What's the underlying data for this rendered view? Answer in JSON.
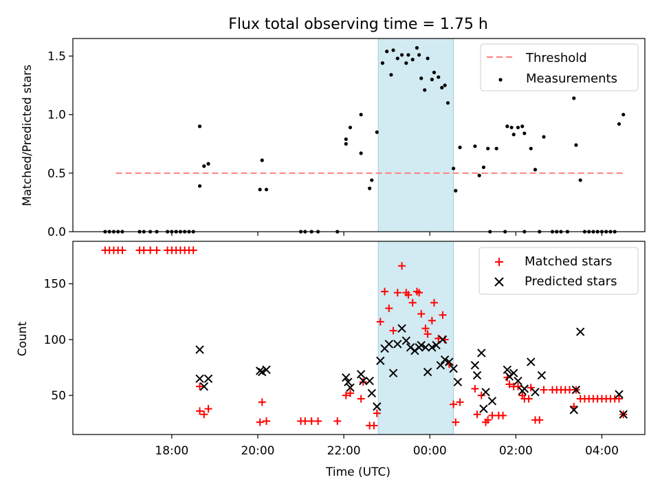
{
  "figure": {
    "title": "Flux total observing time = 1.75 h"
  },
  "chart_data": [
    {
      "type": "scatter",
      "ylabel": "Matched/Predicted stars",
      "xlabel": "",
      "x_unit": "hours since 00:00 UTC (negative = previous day)",
      "xlim": [
        -8.3,
        5.0
      ],
      "ylim": [
        0.0,
        1.65
      ],
      "yticks": [
        "0.0",
        "0.5",
        "1.0",
        "1.5"
      ],
      "shaded_interval": {
        "start": -1.2,
        "end": 0.55,
        "color": "#add8e6"
      },
      "threshold": {
        "name": "Threshold",
        "value": 0.5,
        "x_start": -7.3,
        "x_end": 4.5,
        "color": "#ff7f7f"
      },
      "legend": {
        "position": "top-right",
        "entries": [
          "Threshold",
          "Measurements"
        ]
      },
      "series": [
        {
          "name": "Measurements",
          "color": "#000000",
          "points": [
            [
              -7.55,
              0
            ],
            [
              -7.45,
              0
            ],
            [
              -7.35,
              0
            ],
            [
              -7.25,
              0
            ],
            [
              -7.15,
              0
            ],
            [
              -6.75,
              0
            ],
            [
              -6.65,
              0
            ],
            [
              -6.5,
              0
            ],
            [
              -6.35,
              0
            ],
            [
              -6.1,
              0
            ],
            [
              -6.0,
              0
            ],
            [
              -5.9,
              0
            ],
            [
              -5.8,
              0
            ],
            [
              -5.7,
              0
            ],
            [
              -5.6,
              0
            ],
            [
              -5.5,
              0
            ],
            [
              -5.35,
              0.9
            ],
            [
              -5.35,
              0.39
            ],
            [
              -5.25,
              0.56
            ],
            [
              -5.15,
              0.58
            ],
            [
              -3.95,
              0.36
            ],
            [
              -3.9,
              0.61
            ],
            [
              -3.8,
              0.36
            ],
            [
              -3.0,
              0
            ],
            [
              -2.9,
              0
            ],
            [
              -2.75,
              0
            ],
            [
              -2.6,
              0
            ],
            [
              -2.15,
              0
            ],
            [
              -1.95,
              0.79
            ],
            [
              -1.95,
              0.75
            ],
            [
              -1.85,
              0.89
            ],
            [
              -1.6,
              1.0
            ],
            [
              -1.6,
              0.67
            ],
            [
              -1.4,
              0.37
            ],
            [
              -1.35,
              0.44
            ],
            [
              -1.23,
              0.85
            ],
            [
              -1.1,
              1.44
            ],
            [
              -1.0,
              1.54
            ],
            [
              -0.9,
              1.34
            ],
            [
              -0.85,
              1.55
            ],
            [
              -0.75,
              1.48
            ],
            [
              -0.65,
              1.51
            ],
            [
              -0.55,
              1.44
            ],
            [
              -0.5,
              1.51
            ],
            [
              -0.4,
              1.47
            ],
            [
              -0.3,
              1.57
            ],
            [
              -0.25,
              1.51
            ],
            [
              -0.2,
              1.31
            ],
            [
              -0.12,
              1.21
            ],
            [
              -0.05,
              1.48
            ],
            [
              0.05,
              1.3
            ],
            [
              0.1,
              1.36
            ],
            [
              0.2,
              1.32
            ],
            [
              0.28,
              1.23
            ],
            [
              0.35,
              1.25
            ],
            [
              0.42,
              1.1
            ],
            [
              0.55,
              0.54
            ],
            [
              0.6,
              0.35
            ],
            [
              0.7,
              0.72
            ],
            [
              1.05,
              0.73
            ],
            [
              1.15,
              0.48
            ],
            [
              1.25,
              0.55
            ],
            [
              1.35,
              0.71
            ],
            [
              1.4,
              0
            ],
            [
              1.55,
              0.71
            ],
            [
              1.75,
              0
            ],
            [
              1.8,
              0.9
            ],
            [
              1.9,
              0.89
            ],
            [
              1.95,
              0.83
            ],
            [
              2.05,
              0.89
            ],
            [
              2.15,
              0.9
            ],
            [
              2.2,
              0.84
            ],
            [
              2.2,
              0
            ],
            [
              2.35,
              0.71
            ],
            [
              2.45,
              0.53
            ],
            [
              2.55,
              0
            ],
            [
              2.65,
              0.81
            ],
            [
              2.85,
              0
            ],
            [
              2.95,
              0
            ],
            [
              3.05,
              0
            ],
            [
              3.2,
              0
            ],
            [
              3.35,
              1.14
            ],
            [
              3.4,
              0.74
            ],
            [
              3.5,
              0.44
            ],
            [
              3.6,
              0
            ],
            [
              3.7,
              0
            ],
            [
              3.8,
              0
            ],
            [
              3.9,
              0
            ],
            [
              4.0,
              0
            ],
            [
              4.1,
              0
            ],
            [
              4.2,
              0
            ],
            [
              4.3,
              0
            ],
            [
              4.4,
              0.92
            ],
            [
              4.5,
              1.0
            ]
          ]
        }
      ]
    },
    {
      "type": "scatter",
      "xlabel": "Time (UTC)",
      "ylabel": "Count",
      "x_unit": "hours since 00:00 UTC (negative = previous day)",
      "xlim": [
        -8.3,
        5.0
      ],
      "ylim": [
        15,
        188
      ],
      "yticks": [
        "50",
        "100",
        "150"
      ],
      "xticks": [
        "18:00",
        "20:00",
        "22:00",
        "00:00",
        "02:00",
        "04:00"
      ],
      "shaded_interval": {
        "start": -1.2,
        "end": 0.55,
        "color": "#add8e6"
      },
      "legend": {
        "position": "top-right",
        "entries": [
          "Matched stars",
          "Predicted stars"
        ]
      },
      "series": [
        {
          "name": "Matched stars",
          "marker": "plus",
          "color": "#ff0000",
          "points": [
            [
              -7.55,
              180
            ],
            [
              -7.45,
              180
            ],
            [
              -7.35,
              180
            ],
            [
              -7.25,
              180
            ],
            [
              -7.15,
              180
            ],
            [
              -6.75,
              180
            ],
            [
              -6.65,
              180
            ],
            [
              -6.5,
              180
            ],
            [
              -6.35,
              180
            ],
            [
              -6.1,
              180
            ],
            [
              -6.0,
              180
            ],
            [
              -5.9,
              180
            ],
            [
              -5.8,
              180
            ],
            [
              -5.7,
              180
            ],
            [
              -5.6,
              180
            ],
            [
              -5.5,
              180
            ],
            [
              -5.35,
              58
            ],
            [
              -5.35,
              36
            ],
            [
              -5.25,
              33
            ],
            [
              -5.15,
              38
            ],
            [
              -3.95,
              26
            ],
            [
              -3.9,
              44
            ],
            [
              -3.8,
              27
            ],
            [
              -3.0,
              27
            ],
            [
              -2.9,
              27
            ],
            [
              -2.75,
              27
            ],
            [
              -2.6,
              27
            ],
            [
              -2.15,
              27
            ],
            [
              -1.95,
              50
            ],
            [
              -1.85,
              52
            ],
            [
              -1.6,
              47
            ],
            [
              -1.55,
              62
            ],
            [
              -1.4,
              23
            ],
            [
              -1.3,
              23
            ],
            [
              -1.23,
              34
            ],
            [
              -1.15,
              116
            ],
            [
              -1.05,
              143
            ],
            [
              -0.95,
              128
            ],
            [
              -0.85,
              108
            ],
            [
              -0.75,
              142
            ],
            [
              -0.65,
              166
            ],
            [
              -0.55,
              142
            ],
            [
              -0.5,
              140
            ],
            [
              -0.4,
              133
            ],
            [
              -0.3,
              143
            ],
            [
              -0.25,
              142
            ],
            [
              -0.2,
              123
            ],
            [
              -0.1,
              110
            ],
            [
              -0.05,
              105
            ],
            [
              0.05,
              117
            ],
            [
              0.1,
              133
            ],
            [
              0.2,
              101
            ],
            [
              0.3,
              122
            ],
            [
              0.35,
              100
            ],
            [
              0.45,
              78
            ],
            [
              0.55,
              42
            ],
            [
              0.6,
              26
            ],
            [
              0.7,
              44
            ],
            [
              1.05,
              56
            ],
            [
              1.1,
              33
            ],
            [
              1.2,
              50
            ],
            [
              1.3,
              26
            ],
            [
              1.35,
              28
            ],
            [
              1.45,
              32
            ],
            [
              1.6,
              32
            ],
            [
              1.7,
              32
            ],
            [
              1.8,
              66
            ],
            [
              1.85,
              60
            ],
            [
              1.95,
              58
            ],
            [
              2.05,
              58
            ],
            [
              2.15,
              50
            ],
            [
              2.2,
              47
            ],
            [
              2.3,
              47
            ],
            [
              2.35,
              57
            ],
            [
              2.45,
              28
            ],
            [
              2.55,
              28
            ],
            [
              2.65,
              55
            ],
            [
              2.85,
              55
            ],
            [
              2.95,
              55
            ],
            [
              3.05,
              55
            ],
            [
              3.15,
              55
            ],
            [
              3.25,
              55
            ],
            [
              3.35,
              40
            ],
            [
              3.4,
              55
            ],
            [
              3.5,
              47
            ],
            [
              3.6,
              47
            ],
            [
              3.7,
              47
            ],
            [
              3.8,
              47
            ],
            [
              3.9,
              47
            ],
            [
              4.0,
              47
            ],
            [
              4.1,
              47
            ],
            [
              4.2,
              47
            ],
            [
              4.3,
              47
            ],
            [
              4.4,
              47
            ],
            [
              4.5,
              33
            ]
          ]
        },
        {
          "name": "Predicted stars",
          "marker": "x",
          "color": "#000000",
          "points": [
            [
              -5.35,
              91
            ],
            [
              -5.35,
              65
            ],
            [
              -5.25,
              58
            ],
            [
              -5.15,
              65
            ],
            [
              -3.95,
              72
            ],
            [
              -3.9,
              71
            ],
            [
              -3.8,
              73
            ],
            [
              -1.95,
              66
            ],
            [
              -1.9,
              62
            ],
            [
              -1.85,
              57
            ],
            [
              -1.6,
              69
            ],
            [
              -1.55,
              63
            ],
            [
              -1.4,
              63
            ],
            [
              -1.35,
              52
            ],
            [
              -1.23,
              40
            ],
            [
              -1.15,
              81
            ],
            [
              -1.05,
              92
            ],
            [
              -0.95,
              96
            ],
            [
              -0.85,
              70
            ],
            [
              -0.75,
              96
            ],
            [
              -0.65,
              110
            ],
            [
              -0.55,
              99
            ],
            [
              -0.45,
              93
            ],
            [
              -0.35,
              90
            ],
            [
              -0.25,
              93
            ],
            [
              -0.2,
              95
            ],
            [
              -0.1,
              93
            ],
            [
              -0.05,
              71
            ],
            [
              0.05,
              93
            ],
            [
              0.15,
              95
            ],
            [
              0.25,
              77
            ],
            [
              0.3,
              100
            ],
            [
              0.35,
              82
            ],
            [
              0.45,
              80
            ],
            [
              0.55,
              74
            ],
            [
              0.65,
              62
            ],
            [
              1.05,
              77
            ],
            [
              1.1,
              68
            ],
            [
              1.2,
              88
            ],
            [
              1.25,
              38
            ],
            [
              1.3,
              53
            ],
            [
              1.45,
              45
            ],
            [
              1.8,
              73
            ],
            [
              1.85,
              67
            ],
            [
              1.95,
              70
            ],
            [
              2.05,
              63
            ],
            [
              2.15,
              54
            ],
            [
              2.2,
              56
            ],
            [
              2.35,
              80
            ],
            [
              2.45,
              53
            ],
            [
              2.6,
              68
            ],
            [
              3.35,
              37
            ],
            [
              3.4,
              55
            ],
            [
              3.5,
              107
            ],
            [
              4.4,
              51
            ],
            [
              4.5,
              33
            ]
          ]
        }
      ]
    }
  ]
}
